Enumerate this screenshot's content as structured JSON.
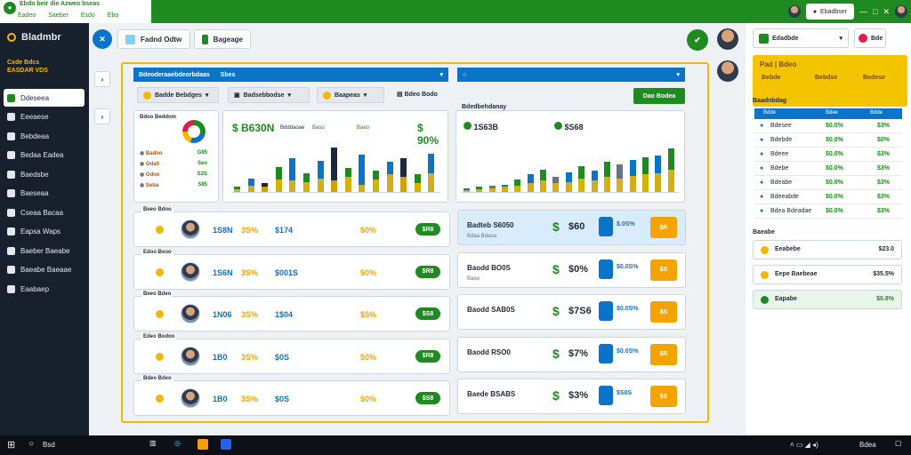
{
  "colors": {
    "brand_green": "#1f8a1f",
    "accent_yellow": "#f5b700",
    "accent_blue": "#0b74c9",
    "accent_orange": "#f5a300",
    "sidebar_bg": "#17202c"
  },
  "titlebar": {
    "tab_title": "Ebdo beir die Azweo bseas",
    "nav": [
      "Eadeo",
      "Saeber",
      "Esdo",
      "Ebo"
    ],
    "right_label": "Ebadbser"
  },
  "sidebar": {
    "brand": "Bladmbr",
    "subbrand": "Cxde Bdcs\nEASDAR VDS",
    "items": [
      {
        "label": "Ddeseea",
        "icon": "dashboard-icon",
        "active": true
      },
      {
        "label": "Eeeaese",
        "icon": "shield-icon"
      },
      {
        "label": "Bebdeaa",
        "icon": "briefcase-icon"
      },
      {
        "label": "Bedaa Eadea",
        "icon": "chart-icon"
      },
      {
        "label": "Baedsbe",
        "icon": "wallet-icon"
      },
      {
        "label": "Baeseaa",
        "icon": "user-icon"
      },
      {
        "label": "Cseaa Bacaa",
        "icon": "card-icon"
      },
      {
        "label": "Eapsa Waps",
        "icon": "globe-icon"
      },
      {
        "label": "Baeber Baeabe",
        "icon": "bell-icon"
      },
      {
        "label": "Baeabe Baeaae",
        "icon": "settings-icon"
      },
      {
        "label": "Eaabaep",
        "icon": "gear-icon"
      }
    ]
  },
  "toolbar": {
    "btn1": "Fadnd Odtw",
    "btn2": "Bageage"
  },
  "left_panel": {
    "header": "Bdeoderaaebdeorbdaas",
    "header2": "Sbes",
    "filters": [
      "Badde Bebdges",
      "Badsebbodse",
      "Baapeas"
    ],
    "filter_text": "Bdeo Bodo",
    "action_btn": "Dao Bodea",
    "mini_title": "Bdoo Beddom",
    "mini_list": [
      {
        "label": "Badoo",
        "value": "G85"
      },
      {
        "label": "Oda0",
        "value": "Seo"
      },
      {
        "label": "Odoo",
        "value": "S3S"
      },
      {
        "label": "Seba",
        "value": "S85"
      }
    ],
    "stats": [
      {
        "label": "Bdddaoae",
        "value": "$ 90%"
      },
      {
        "label": "Baso",
        "value": "Bdaae"
      },
      {
        "label": "Baeo",
        "value": "$.0%"
      }
    ],
    "big_value": "$ B630N"
  },
  "mid_chart": {
    "title": "Bdedbehdanay",
    "value1": "1S63B",
    "value2": "$S68"
  },
  "rows": [
    {
      "tag": "Beeo Bdoo",
      "cols": [
        "1S8N",
        "3S%",
        "$174",
        "50%"
      ],
      "pill": "$R8"
    },
    {
      "tag": "Edoo Beoo",
      "cols": [
        "1S6N",
        "3S%",
        "$001S",
        "50%"
      ],
      "pill": "$R8"
    },
    {
      "tag": "Beeo Bdeo",
      "cols": [
        "1N06",
        "3S%",
        "1$04",
        "$5%"
      ],
      "pill": "$S8"
    },
    {
      "tag": "Edeo Bodoo",
      "cols": [
        "1B0",
        "3S%",
        "$0S",
        "50%"
      ],
      "pill": "$R8"
    },
    {
      "tag": "Bdeo Bdeo",
      "cols": [
        "1B0",
        "3S%",
        "$0S",
        "50%"
      ],
      "pill": "$S8"
    }
  ],
  "right_cards": [
    {
      "label": "Badteb S6050",
      "sub": "Bdaa Bdaoa",
      "value": "$60",
      "meta": "$.0S%",
      "orange": "$R"
    },
    {
      "label": "Baodd BO0S",
      "sub": "Baeo",
      "value": "$0%",
      "meta": "$0.0S%",
      "orange": "$S"
    },
    {
      "label": "Baodd SAB0S",
      "sub": "",
      "value": "$7S6",
      "meta": "$0.0S%",
      "orange": "$S"
    },
    {
      "label": "Baodd RSO0",
      "sub": "",
      "value": "$7%",
      "meta": "$0.0S%",
      "orange": "$R"
    },
    {
      "label": "Baede BSABS",
      "sub": "",
      "value": "$3%",
      "meta": "$S0S",
      "orange": "$S"
    }
  ],
  "right_pane": {
    "dropdown": "Edadbde",
    "red_btn": "Bde",
    "highlight": {
      "title": "Pad | Bdeo",
      "a": "Bebde",
      "b": "Bebdse",
      "c": "Bedese"
    },
    "table_title": "Baadnbdag",
    "table_headers": [
      "Bdde",
      "Bdee",
      "Bdde"
    ],
    "table": [
      {
        "name": "Bdesee",
        "a": "$0.0%",
        "b": "$3%"
      },
      {
        "name": "Bdebde",
        "a": "$0.0%",
        "b": "$0%"
      },
      {
        "name": "Bdeee",
        "a": "$0.0%",
        "b": "$3%"
      },
      {
        "name": "Bdebe",
        "a": "$0.0%",
        "b": "$3%"
      },
      {
        "name": "Bdeabe",
        "a": "$0.0%",
        "b": "$3%"
      },
      {
        "name": "Bdeeabde",
        "a": "$0.0%",
        "b": "$3%"
      },
      {
        "name": "Bdea Bdeadae",
        "a": "$0.0%",
        "b": "$3%"
      }
    ],
    "summary_title": "Baeabe",
    "summary": [
      {
        "label": "Eeabebe",
        "value": "$23.0"
      },
      {
        "label": "Eepe Baebeae",
        "value": "$35.5%"
      },
      {
        "label": "Eapabe",
        "value": "$0.8%"
      }
    ]
  },
  "taskbar": {
    "search": "Bsd",
    "time": "Bdea"
  },
  "chart_data": [
    {
      "type": "bar",
      "series": [
        {
          "values": [
            8,
            22,
            14,
            40,
            55,
            30,
            50,
            72,
            38,
            60,
            34,
            48,
            55,
            28,
            62
          ]
        },
        {
          "values": [
            4,
            10,
            8,
            20,
            18,
            16,
            22,
            18,
            24,
            12,
            20,
            28,
            24,
            14,
            30
          ]
        }
      ]
    },
    {
      "type": "bar",
      "series": [
        {
          "values": [
            6,
            8,
            10,
            12,
            20,
            28,
            36,
            24,
            32,
            42,
            34,
            48,
            44,
            52,
            56,
            58,
            70
          ]
        },
        {
          "values": [
            3,
            4,
            6,
            8,
            10,
            14,
            18,
            14,
            16,
            22,
            18,
            24,
            22,
            26,
            28,
            30,
            36
          ]
        }
      ]
    }
  ]
}
